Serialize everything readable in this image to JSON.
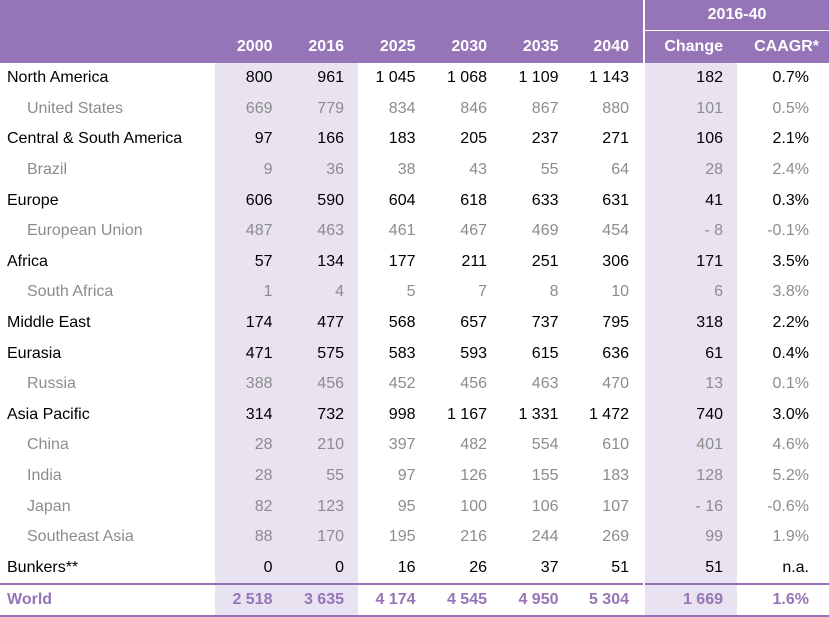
{
  "header": {
    "group_label": "2016-40",
    "region_label": "",
    "years": [
      "2000",
      "2016",
      "2025",
      "2030",
      "2035",
      "2040"
    ],
    "change_label": "Change",
    "caagr_label": "CAAGR*"
  },
  "rows": [
    {
      "region": "North America",
      "sub": false,
      "values": [
        "800",
        "961",
        "1 045",
        "1 068",
        "1 109",
        "1 143"
      ],
      "change": "182",
      "caagr": "0.7%"
    },
    {
      "region": "United States",
      "sub": true,
      "values": [
        "669",
        "779",
        "834",
        "846",
        "867",
        "880"
      ],
      "change": "101",
      "caagr": "0.5%"
    },
    {
      "region": "Central & South America",
      "sub": false,
      "values": [
        "97",
        "166",
        "183",
        "205",
        "237",
        "271"
      ],
      "change": "106",
      "caagr": "2.1%"
    },
    {
      "region": "Brazil",
      "sub": true,
      "values": [
        "9",
        "36",
        "38",
        "43",
        "55",
        "64"
      ],
      "change": "28",
      "caagr": "2.4%"
    },
    {
      "region": "Europe",
      "sub": false,
      "values": [
        "606",
        "590",
        "604",
        "618",
        "633",
        "631"
      ],
      "change": "41",
      "caagr": "0.3%"
    },
    {
      "region": "European Union",
      "sub": true,
      "values": [
        "487",
        "463",
        "461",
        "467",
        "469",
        "454"
      ],
      "change": "- 8",
      "caagr": "-0.1%"
    },
    {
      "region": "Africa",
      "sub": false,
      "values": [
        "57",
        "134",
        "177",
        "211",
        "251",
        "306"
      ],
      "change": "171",
      "caagr": "3.5%"
    },
    {
      "region": "South Africa",
      "sub": true,
      "values": [
        "1",
        "4",
        "5",
        "7",
        "8",
        "10"
      ],
      "change": "6",
      "caagr": "3.8%"
    },
    {
      "region": "Middle East",
      "sub": false,
      "values": [
        "174",
        "477",
        "568",
        "657",
        "737",
        "795"
      ],
      "change": "318",
      "caagr": "2.2%"
    },
    {
      "region": "Eurasia",
      "sub": false,
      "values": [
        "471",
        "575",
        "583",
        "593",
        "615",
        "636"
      ],
      "change": "61",
      "caagr": "0.4%"
    },
    {
      "region": "Russia",
      "sub": true,
      "values": [
        "388",
        "456",
        "452",
        "456",
        "463",
        "470"
      ],
      "change": "13",
      "caagr": "0.1%"
    },
    {
      "region": "Asia Pacific",
      "sub": false,
      "values": [
        "314",
        "732",
        "998",
        "1 167",
        "1 331",
        "1 472"
      ],
      "change": "740",
      "caagr": "3.0%"
    },
    {
      "region": "China",
      "sub": true,
      "values": [
        "28",
        "210",
        "397",
        "482",
        "554",
        "610"
      ],
      "change": "401",
      "caagr": "4.6%"
    },
    {
      "region": "India",
      "sub": true,
      "values": [
        "28",
        "55",
        "97",
        "126",
        "155",
        "183"
      ],
      "change": "128",
      "caagr": "5.2%"
    },
    {
      "region": "Japan",
      "sub": true,
      "values": [
        "82",
        "123",
        "95",
        "100",
        "106",
        "107"
      ],
      "change": "- 16",
      "caagr": "-0.6%"
    },
    {
      "region": "Southeast Asia",
      "sub": true,
      "values": [
        "88",
        "170",
        "195",
        "216",
        "244",
        "269"
      ],
      "change": "99",
      "caagr": "1.9%"
    },
    {
      "region": "Bunkers**",
      "sub": false,
      "values": [
        "0",
        "0",
        "16",
        "26",
        "37",
        "51"
      ],
      "change": "51",
      "caagr": "n.a."
    }
  ],
  "total": {
    "region": "World",
    "values": [
      "2 518",
      "3 635",
      "4 174",
      "4 545",
      "4 950",
      "5 304"
    ],
    "change": "1 669",
    "caagr": "1.6%"
  },
  "colors": {
    "header_bg": "#9575b7",
    "shade": "#e9e3f1",
    "sub_text": "#8c8c8c",
    "total_text": "#9575b7"
  }
}
